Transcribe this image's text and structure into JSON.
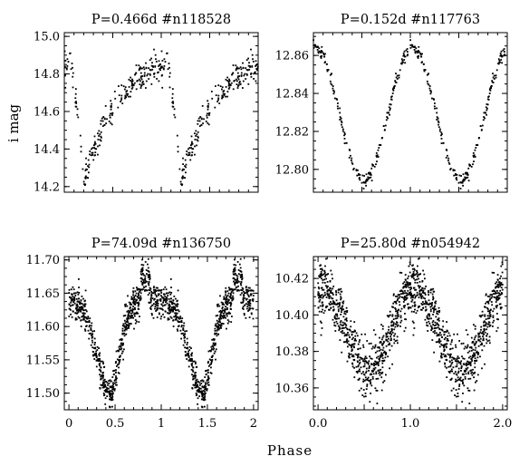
{
  "figure": {
    "shared_xlabel": "Phase",
    "shared_ylabel": "i mag"
  },
  "chart_data": [
    {
      "type": "scatter",
      "title": "P=0.466d  #n118528",
      "period_days": 0.466,
      "star_id": "#n118528",
      "xlim": [
        0,
        2
      ],
      "ylim": [
        15.02,
        14.17
      ],
      "y_inverted": true,
      "y_ticks": [
        14.2,
        14.4,
        14.6,
        14.8,
        15.0
      ],
      "y_tick_labels": [
        "14.2",
        "14.4",
        "14.6",
        "14.8",
        "15.0"
      ],
      "show_x_tick_labels": false,
      "x_tick_labels_list": [],
      "light_curve": {
        "shape": "rrlyrae",
        "peak_phase": 0.2,
        "mag_max": 14.21,
        "mag_min": 14.86,
        "scatter": 0.035,
        "points_per_cycle": 240
      }
    },
    {
      "type": "scatter",
      "title": "P=0.152d  #n117763",
      "period_days": 0.152,
      "star_id": "#n117763",
      "xlim": [
        0,
        2
      ],
      "ylim": [
        12.872,
        12.788
      ],
      "y_inverted": true,
      "y_ticks": [
        12.8,
        12.82,
        12.84,
        12.86
      ],
      "y_tick_labels": [
        "12.80",
        "12.82",
        "12.84",
        "12.86"
      ],
      "show_x_tick_labels": false,
      "x_tick_labels_list": [],
      "light_curve": {
        "shape": "sine",
        "peak_phase": 0.52,
        "mag_max": 12.794,
        "mag_min": 12.864,
        "scatter": 0.0016,
        "points_per_cycle": 200
      }
    },
    {
      "type": "scatter",
      "title": "P=74.09d  #n136750",
      "period_days": 74.09,
      "star_id": "#n136750",
      "xlim": [
        -0.05,
        2.05
      ],
      "ylim": [
        11.705,
        11.475
      ],
      "y_inverted": true,
      "y_ticks": [
        11.5,
        11.55,
        11.6,
        11.65,
        11.7
      ],
      "y_tick_labels": [
        "11.50",
        "11.55",
        "11.60",
        "11.65",
        "11.70"
      ],
      "show_x_tick_labels": true,
      "x_ticks": [
        0,
        0.5,
        1,
        1.5,
        2
      ],
      "x_tick_labels_list": [
        "0",
        "0.5",
        "1",
        "1.5",
        "2"
      ],
      "light_curve": {
        "shape": "longperiod",
        "peak_phase": 0.44,
        "mag_max": 11.5,
        "mag_plateau": 11.64,
        "mag_dip": 11.67,
        "scatter": 0.013,
        "points_per_cycle": 700
      }
    },
    {
      "type": "scatter",
      "title": "P=25.80d  #n054942",
      "period_days": 25.8,
      "star_id": "#n054942",
      "xlim": [
        -0.05,
        2.05
      ],
      "ylim": [
        10.432,
        10.348
      ],
      "y_inverted": true,
      "y_ticks": [
        10.36,
        10.38,
        10.4,
        10.42
      ],
      "y_tick_labels": [
        "10.36",
        "10.38",
        "10.40",
        "10.42"
      ],
      "show_x_tick_labels": true,
      "x_ticks": [
        0,
        1,
        2
      ],
      "x_tick_labels_list": [
        "0.0",
        "1.0",
        "2.0"
      ],
      "light_curve": {
        "shape": "sine",
        "peak_phase": 0.55,
        "mag_max": 10.37,
        "mag_min": 10.414,
        "scatter": 0.0075,
        "points_per_cycle": 700
      }
    }
  ]
}
